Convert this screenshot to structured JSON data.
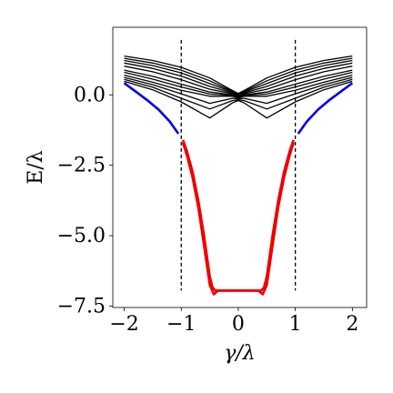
{
  "chart_data": {
    "type": "line",
    "title": "",
    "xlabel": "γ/λ",
    "ylabel": "E/λ",
    "xlim": [
      -2.2,
      2.25
    ],
    "ylim": [
      -7.55,
      2.4
    ],
    "xticks": [
      {
        "value": -2,
        "label": "−2"
      },
      {
        "value": -1,
        "label": "−1"
      },
      {
        "value": 0,
        "label": "0"
      },
      {
        "value": 1,
        "label": "1"
      },
      {
        "value": 2,
        "label": "2"
      }
    ],
    "yticks": [
      {
        "value": 0,
        "label": "0.0"
      },
      {
        "value": -2.5,
        "label": "−2.5"
      },
      {
        "value": -5,
        "label": "−5.0"
      },
      {
        "value": -7.5,
        "label": "−7.5"
      }
    ],
    "grid": false,
    "legend": "none",
    "vlines": {
      "x": [
        -1,
        1
      ],
      "y_range": [
        -6.95,
        1.95
      ],
      "style": "dashed",
      "color": "#000000"
    },
    "colors": {
      "band": "#000000",
      "outer": "#0000ee",
      "inner": "#ee0000"
    },
    "series": [
      {
        "group": "band",
        "x": [
          -2,
          -1.5,
          -1,
          -0.5,
          -0.1,
          0,
          0.1,
          0.5,
          1,
          1.5,
          2
        ],
        "y": [
          1.38,
          1.22,
          0.98,
          0.6,
          0.15,
          0.05,
          0.15,
          0.6,
          0.98,
          1.22,
          1.38
        ]
      },
      {
        "group": "band",
        "x": [
          -2,
          -1.5,
          -1,
          -0.5,
          -0.1,
          0,
          0.1,
          0.5,
          1,
          1.5,
          2
        ],
        "y": [
          1.3,
          1.13,
          0.88,
          0.5,
          0.12,
          0.02,
          0.12,
          0.5,
          0.88,
          1.13,
          1.3
        ]
      },
      {
        "group": "band",
        "x": [
          -2,
          -1.5,
          -1,
          -0.5,
          -0.1,
          0,
          0.1,
          0.5,
          1,
          1.5,
          2
        ],
        "y": [
          1.22,
          1.04,
          0.78,
          0.4,
          0.1,
          0.0,
          0.1,
          0.4,
          0.78,
          1.04,
          1.22
        ]
      },
      {
        "group": "band",
        "x": [
          -2,
          -1.5,
          -1,
          -0.5,
          -0.1,
          0,
          0.1,
          0.5,
          1,
          1.5,
          2
        ],
        "y": [
          1.13,
          0.94,
          0.67,
          0.3,
          0.07,
          -0.02,
          0.07,
          0.3,
          0.67,
          0.94,
          1.13
        ]
      },
      {
        "group": "band",
        "x": [
          -2,
          -1.5,
          -1,
          -0.5,
          -0.1,
          0,
          0.1,
          0.5,
          1,
          1.5,
          2
        ],
        "y": [
          1.02,
          0.82,
          0.54,
          0.2,
          0.04,
          -0.05,
          0.04,
          0.2,
          0.54,
          0.82,
          1.02
        ]
      },
      {
        "group": "band",
        "x": [
          -2,
          -1.5,
          -1,
          -0.5,
          -0.1,
          0,
          0.1,
          0.5,
          1,
          1.5,
          2
        ],
        "y": [
          0.88,
          0.66,
          0.38,
          0.1,
          0.0,
          -0.08,
          0.0,
          0.1,
          0.38,
          0.66,
          0.88
        ]
      },
      {
        "group": "band",
        "x": [
          -2,
          -1.5,
          -1,
          -0.5,
          -0.1,
          0,
          0.1,
          0.5,
          1,
          1.5,
          2
        ],
        "y": [
          0.8,
          0.56,
          0.28,
          0.03,
          -0.02,
          -0.1,
          -0.02,
          0.03,
          0.28,
          0.56,
          0.8
        ]
      },
      {
        "group": "band",
        "x": [
          -2,
          -1.5,
          -1,
          -0.5,
          -0.1,
          0,
          0.1,
          0.5,
          1,
          1.5,
          2
        ],
        "y": [
          0.7,
          0.45,
          0.16,
          -0.05,
          -0.05,
          -0.12,
          -0.05,
          -0.05,
          0.16,
          0.45,
          0.7
        ]
      },
      {
        "group": "band",
        "x": [
          -2,
          -1.5,
          -1,
          -0.5,
          -0.1,
          0,
          0.1,
          0.5,
          1,
          1.5,
          2
        ],
        "y": [
          0.62,
          0.36,
          0.04,
          -0.3,
          -0.12,
          -0.15,
          -0.12,
          -0.3,
          0.04,
          0.36,
          0.62
        ]
      },
      {
        "group": "band",
        "x": [
          -2,
          -1.5,
          -1,
          -0.5,
          -0.1,
          0,
          0.1,
          0.5,
          1,
          1.5,
          2
        ],
        "y": [
          0.55,
          0.27,
          -0.12,
          -0.5,
          -0.2,
          -0.18,
          -0.2,
          -0.5,
          -0.12,
          0.27,
          0.55
        ]
      },
      {
        "group": "band",
        "x": [
          -2,
          -1.5,
          -1,
          -0.5,
          -0.1,
          0,
          0.1,
          0.5,
          1,
          1.5,
          2
        ],
        "y": [
          0.48,
          0.18,
          -0.25,
          -0.82,
          -0.28,
          -0.2,
          -0.28,
          -0.82,
          -0.25,
          0.18,
          0.48
        ]
      },
      {
        "group": "outer",
        "x": [
          -2,
          -1.8,
          -1.6,
          -1.4,
          -1.2,
          -1.05
        ],
        "y": [
          0.42,
          0.12,
          -0.18,
          -0.52,
          -0.95,
          -1.38
        ]
      },
      {
        "group": "outer",
        "x": [
          1.05,
          1.2,
          1.4,
          1.6,
          1.8,
          2
        ],
        "y": [
          -1.38,
          -0.95,
          -0.52,
          -0.18,
          0.12,
          0.42
        ]
      },
      {
        "group": "inner",
        "x": [
          -0.97,
          -0.9,
          -0.8,
          -0.7,
          -0.6,
          -0.5,
          -0.45,
          -0.4,
          -0.3,
          -0.2,
          0,
          0.2,
          0.3,
          0.4,
          0.45,
          0.5,
          0.6,
          0.7,
          0.8,
          0.9,
          0.97
        ],
        "y": [
          -1.6,
          -2.0,
          -2.75,
          -3.75,
          -5.0,
          -6.45,
          -6.85,
          -6.95,
          -6.95,
          -6.95,
          -6.95,
          -6.95,
          -6.95,
          -6.95,
          -6.85,
          -6.45,
          -5.0,
          -3.75,
          -2.75,
          -2.0,
          -1.6
        ]
      },
      {
        "group": "inner",
        "x": [
          -0.97,
          -0.9,
          -0.8,
          -0.7,
          -0.6,
          -0.5,
          -0.43,
          -0.35,
          -0.25,
          0,
          0.25,
          0.35,
          0.43,
          0.5,
          0.6,
          0.7,
          0.8,
          0.9,
          0.97
        ],
        "y": [
          -1.7,
          -2.15,
          -2.95,
          -4.0,
          -5.35,
          -6.75,
          -7.08,
          -6.95,
          -6.95,
          -6.95,
          -6.95,
          -6.95,
          -7.08,
          -6.75,
          -5.35,
          -4.0,
          -2.95,
          -2.15,
          -1.7
        ]
      }
    ]
  }
}
